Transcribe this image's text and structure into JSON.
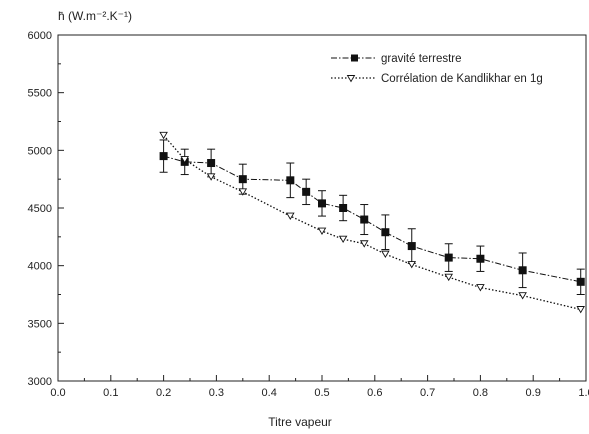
{
  "chart_data": {
    "type": "line",
    "title": "",
    "ylabel": "h̄ (W.m⁻².K⁻¹)",
    "xlabel": "Titre vapeur",
    "xlim": [
      0.0,
      1.0
    ],
    "ylim": [
      3000,
      6000
    ],
    "x_ticks": [
      0.0,
      0.1,
      0.2,
      0.3,
      0.4,
      0.5,
      0.6,
      0.7,
      0.8,
      0.9,
      1.0
    ],
    "x_tick_labels": [
      "0.0",
      "0.1",
      "0.2",
      "0.3",
      "0.4",
      "0.5",
      "0.6",
      "0.7",
      "0.8",
      "0.9",
      "1.0"
    ],
    "y_ticks": [
      3000,
      3500,
      4000,
      4500,
      5000,
      5500,
      6000
    ],
    "y_tick_labels": [
      "3000",
      "3500",
      "4000",
      "4500",
      "5000",
      "5500",
      "6000"
    ],
    "legend_position": "top-right",
    "series": [
      {
        "name": "gravité terrestre",
        "marker": "square",
        "line_style": "dash-dot",
        "color": "#111111",
        "x": [
          0.2,
          0.24,
          0.29,
          0.35,
          0.44,
          0.47,
          0.5,
          0.54,
          0.58,
          0.62,
          0.67,
          0.74,
          0.8,
          0.88,
          0.99
        ],
        "y": [
          4950,
          4900,
          4890,
          4750,
          4740,
          4640,
          4540,
          4500,
          4400,
          4290,
          4170,
          4070,
          4060,
          3960,
          3860
        ],
        "error": [
          140,
          110,
          120,
          130,
          150,
          110,
          110,
          110,
          130,
          150,
          150,
          120,
          110,
          150,
          110
        ]
      },
      {
        "name": "Corrélation de Kandlikhar en 1g",
        "marker": "triangle-down",
        "line_style": "dotted",
        "color": "#111111",
        "x": [
          0.2,
          0.24,
          0.29,
          0.35,
          0.44,
          0.5,
          0.54,
          0.58,
          0.62,
          0.67,
          0.74,
          0.8,
          0.88,
          0.99
        ],
        "y": [
          5130,
          4920,
          4770,
          4640,
          4430,
          4300,
          4230,
          4190,
          4100,
          4010,
          3900,
          3810,
          3740,
          3620
        ]
      }
    ]
  }
}
